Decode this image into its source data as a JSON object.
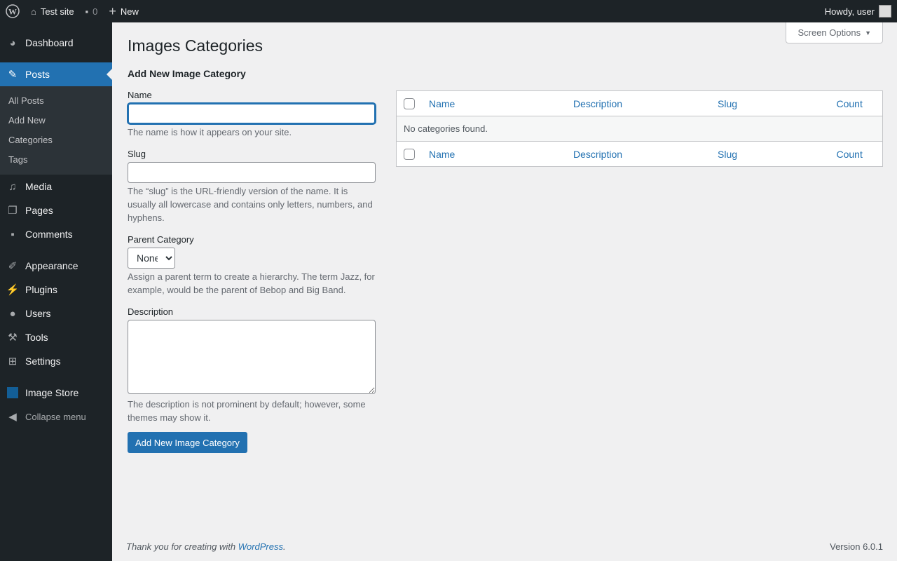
{
  "adminbar": {
    "site": "Test site",
    "comments": "0",
    "new": "New",
    "howdy": "Howdy, user"
  },
  "menu": {
    "dashboard": "Dashboard",
    "posts": "Posts",
    "submenu": [
      "All Posts",
      "Add New",
      "Categories",
      "Tags"
    ],
    "media": "Media",
    "pages": "Pages",
    "comments": "Comments",
    "appearance": "Appearance",
    "plugins": "Plugins",
    "users": "Users",
    "tools": "Tools",
    "settings": "Settings",
    "image_store": "Image Store",
    "collapse": "Collapse menu"
  },
  "page": {
    "title": "Images Categories",
    "screen_options": "Screen Options"
  },
  "form": {
    "heading": "Add New Image Category",
    "name_label": "Name",
    "name_value": "",
    "name_help": "The name is how it appears on your site.",
    "slug_label": "Slug",
    "slug_value": "",
    "slug_help": "The “slug” is the URL-friendly version of the name. It is usually all lowercase and contains only letters, numbers, and hyphens.",
    "parent_label": "Parent Category",
    "parent_value": "None",
    "parent_help": "Assign a parent term to create a hierarchy. The term Jazz, for example, would be the parent of Bebop and Big Band.",
    "desc_label": "Description",
    "desc_value": "",
    "desc_help": "The description is not prominent by default; however, some themes may show it.",
    "submit": "Add New Image Category"
  },
  "table": {
    "columns": [
      "Name",
      "Description",
      "Slug",
      "Count"
    ],
    "empty": "No categories found."
  },
  "footer": {
    "thanks": "Thank you for creating with ",
    "link": "WordPress",
    "version": "Version 6.0.1"
  }
}
